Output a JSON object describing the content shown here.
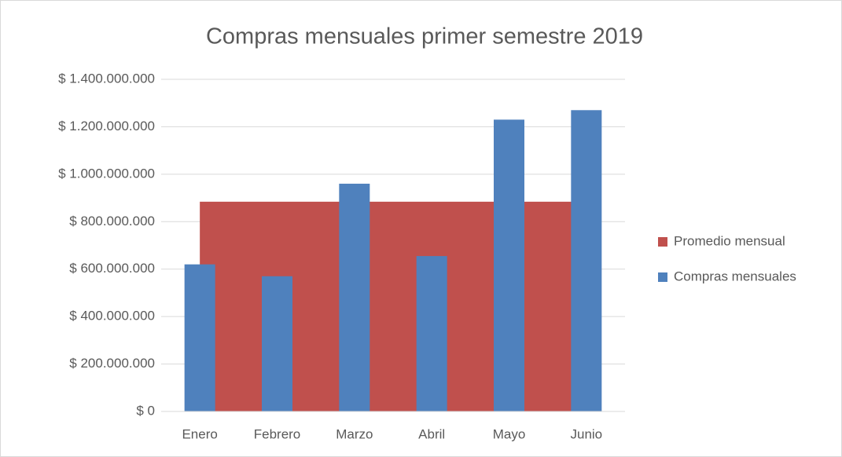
{
  "chart_data": {
    "type": "bar",
    "title": "Compras mensuales primer semestre 2019",
    "categories": [
      "Enero",
      "Febrero",
      "Marzo",
      "Abril",
      "Mayo",
      "Junio"
    ],
    "series": [
      {
        "name": "Promedio mensual",
        "type": "area",
        "color": "#c0504d",
        "values": [
          884000000,
          884000000,
          884000000,
          884000000,
          884000000,
          884000000
        ]
      },
      {
        "name": "Compras mensuales",
        "type": "bar",
        "color": "#4f81bd",
        "values": [
          620000000,
          570000000,
          960000000,
          655000000,
          1230000000,
          1270000000
        ]
      }
    ],
    "ylim": [
      0,
      1400000000
    ],
    "yticks": [
      {
        "value": 0,
        "label": "$ 0"
      },
      {
        "value": 200000000,
        "label": "$ 200.000.000"
      },
      {
        "value": 400000000,
        "label": "$ 400.000.000"
      },
      {
        "value": 600000000,
        "label": "$ 600.000.000"
      },
      {
        "value": 800000000,
        "label": "$ 800.000.000"
      },
      {
        "value": 1000000000,
        "label": "$ 1.000.000.000"
      },
      {
        "value": 1200000000,
        "label": "$ 1.200.000.000"
      },
      {
        "value": 1400000000,
        "label": "$ 1.400.000.000"
      }
    ],
    "grid": true,
    "legend": "right"
  }
}
